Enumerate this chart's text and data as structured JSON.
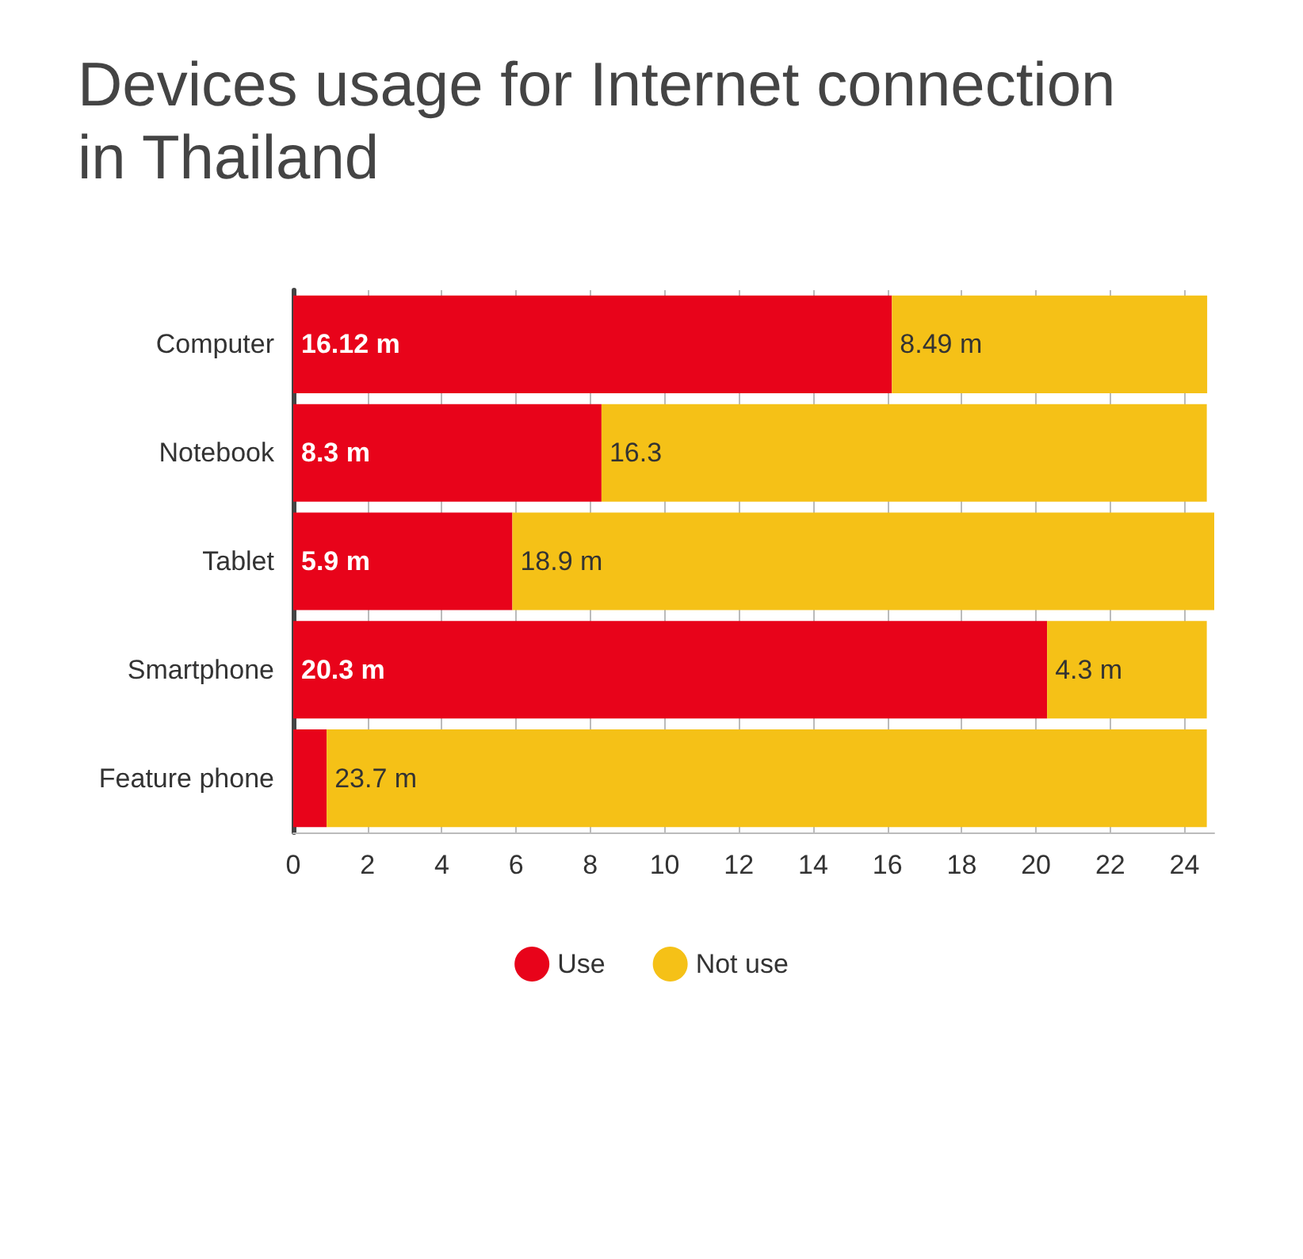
{
  "chart_data": {
    "type": "bar",
    "orientation": "horizontal",
    "stacked": true,
    "title": "Devices usage for Internet connection\nin Thailand",
    "categories": [
      "Computer",
      "Notebook",
      "Tablet",
      "Smartphone",
      "Feature phone"
    ],
    "series": [
      {
        "name": "Use",
        "color": "#e8031a",
        "values": [
          16.12,
          8.3,
          5.9,
          20.3,
          0.9
        ],
        "value_labels": [
          "16.12 m",
          "8.3 m",
          "5.9 m",
          "20.3 m",
          null
        ]
      },
      {
        "name": "Not use",
        "color": "#f5c117",
        "values": [
          8.49,
          16.3,
          18.9,
          4.3,
          23.7
        ],
        "value_labels": [
          "8.49 m",
          "16.3",
          "18.9 m",
          "4.3 m",
          "23.7 m"
        ]
      }
    ],
    "xlim": [
      0,
      24.8
    ],
    "xticks": [
      0,
      2,
      4,
      6,
      8,
      10,
      12,
      14,
      16,
      18,
      20,
      22,
      24
    ],
    "grid": "x",
    "legend": "bottom"
  }
}
